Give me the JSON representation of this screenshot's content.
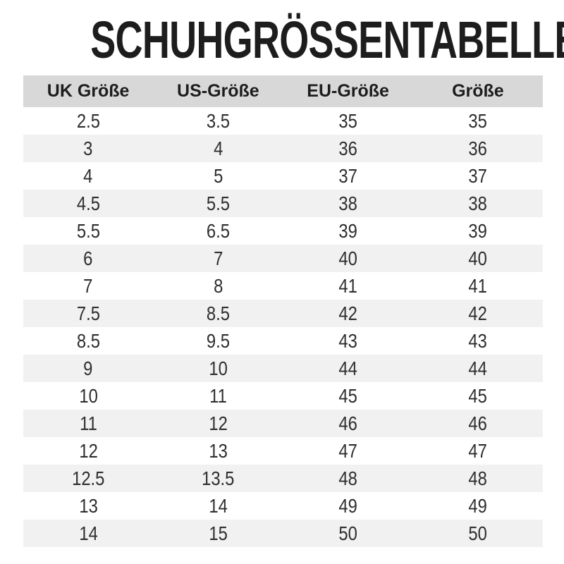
{
  "title": "SCHUHGRÖSSENTABELLE",
  "chart_data": {
    "type": "table",
    "title": "SCHUHGRÖSSENTABELLE",
    "columns": [
      "UK Größe",
      "US-Größe",
      "EU-Größe",
      "Größe"
    ],
    "rows": [
      [
        "2.5",
        "3.5",
        "35",
        "35"
      ],
      [
        "3",
        "4",
        "36",
        "36"
      ],
      [
        "4",
        "5",
        "37",
        "37"
      ],
      [
        "4.5",
        "5.5",
        "38",
        "38"
      ],
      [
        "5.5",
        "6.5",
        "39",
        "39"
      ],
      [
        "6",
        "7",
        "40",
        "40"
      ],
      [
        "7",
        "8",
        "41",
        "41"
      ],
      [
        "7.5",
        "8.5",
        "42",
        "42"
      ],
      [
        "8.5",
        "9.5",
        "43",
        "43"
      ],
      [
        "9",
        "10",
        "44",
        "44"
      ],
      [
        "10",
        "11",
        "45",
        "45"
      ],
      [
        "11",
        "12",
        "46",
        "46"
      ],
      [
        "12",
        "13",
        "47",
        "47"
      ],
      [
        "12.5",
        "13.5",
        "48",
        "48"
      ],
      [
        "13",
        "14",
        "49",
        "49"
      ],
      [
        "14",
        "15",
        "50",
        "50"
      ]
    ],
    "layout": {
      "header_row": true,
      "striped_rows": true,
      "first_stripe": "white"
    }
  },
  "colors": {
    "header_bg": "#d8d8d8",
    "stripe_bg": "#f1f1f1",
    "title_text": "#1d1d1d",
    "cell_text": "#2e2e2e"
  }
}
